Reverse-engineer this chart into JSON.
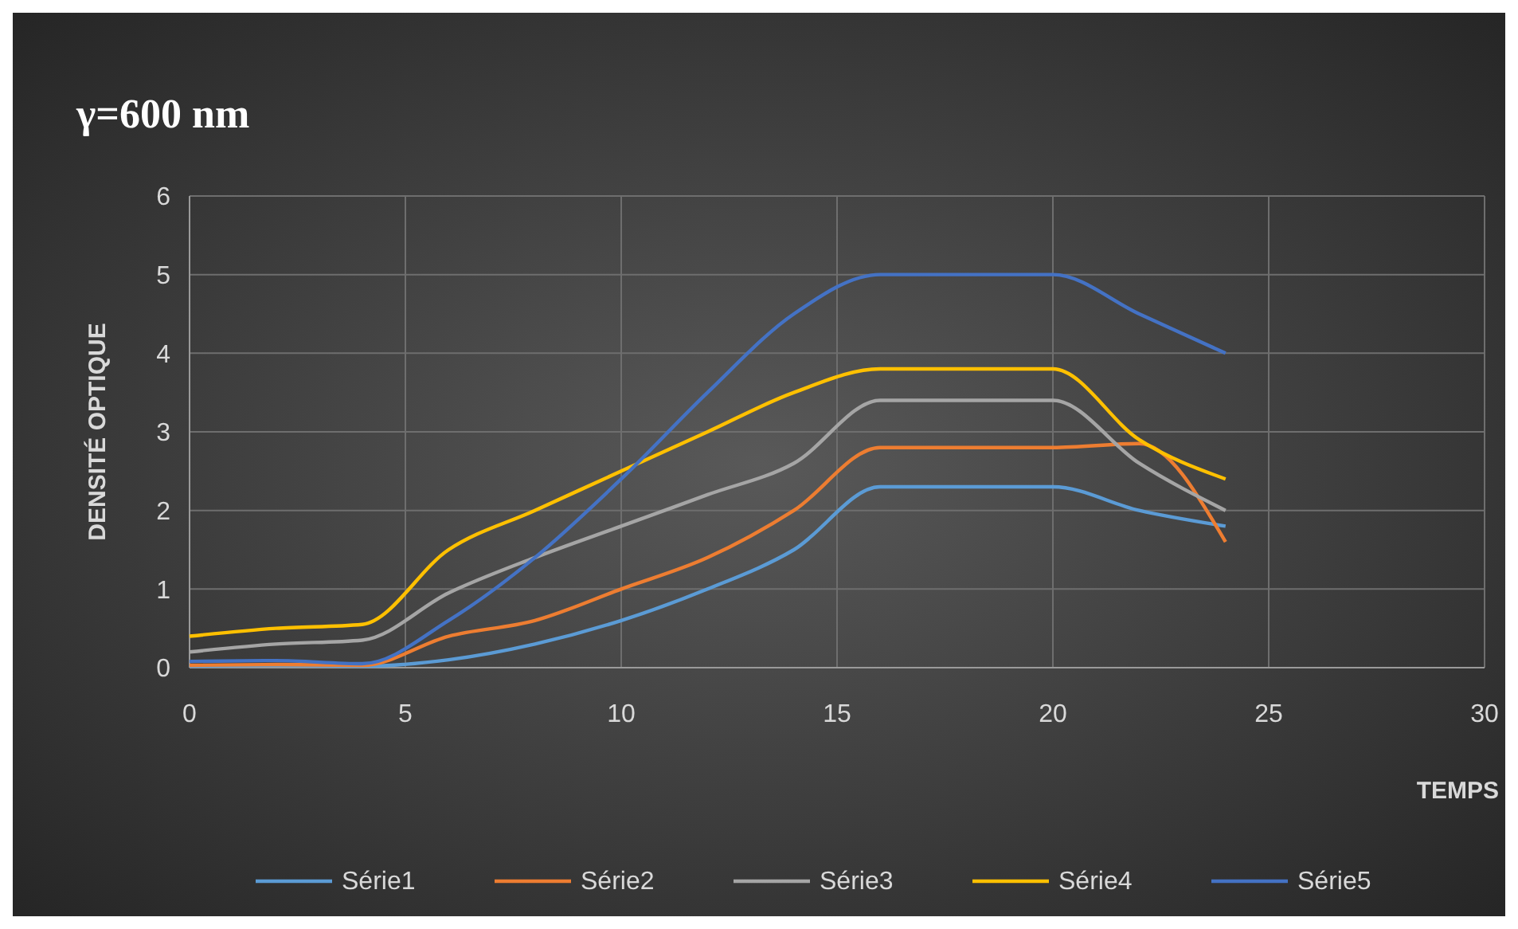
{
  "chart_data": {
    "type": "line",
    "title": "γ=600 nm",
    "xlabel": "TEMPS",
    "ylabel": "DENSITÉ OPTIQUE",
    "x": [
      0,
      2,
      4,
      6,
      8,
      10,
      12,
      14,
      16,
      18,
      20,
      22,
      24
    ],
    "series": [
      {
        "name": "Série1",
        "color": "#5b9bd5",
        "values": [
          0.02,
          0.03,
          0.02,
          0.1,
          0.3,
          0.6,
          1.0,
          1.5,
          2.3,
          2.3,
          2.3,
          2.0,
          1.8
        ]
      },
      {
        "name": "Série2",
        "color": "#ed7d31",
        "values": [
          0.03,
          0.04,
          0.03,
          0.4,
          0.6,
          1.0,
          1.4,
          2.0,
          2.8,
          2.8,
          2.8,
          2.85,
          1.6
        ]
      },
      {
        "name": "Série3",
        "color": "#a5a5a5",
        "values": [
          0.2,
          0.3,
          0.35,
          0.95,
          1.4,
          1.8,
          2.2,
          2.6,
          3.4,
          3.4,
          3.4,
          2.6,
          2.0
        ]
      },
      {
        "name": "Série4",
        "color": "#ffc000",
        "values": [
          0.4,
          0.5,
          0.55,
          1.5,
          2.0,
          2.5,
          3.0,
          3.5,
          3.8,
          3.8,
          3.8,
          2.9,
          2.4
        ]
      },
      {
        "name": "Série5",
        "color": "#4472c4",
        "values": [
          0.08,
          0.09,
          0.05,
          0.6,
          1.4,
          2.4,
          3.5,
          4.5,
          5.0,
          5.0,
          5.0,
          4.5,
          4.0
        ]
      }
    ],
    "xlim": [
      0,
      30
    ],
    "xticks": [
      0,
      5,
      10,
      15,
      20,
      25,
      30
    ],
    "ylim": [
      0,
      6
    ],
    "yticks": [
      0,
      1,
      2,
      3,
      4,
      5,
      6
    ],
    "grid": true,
    "legend": "bottom",
    "marker": "none",
    "line_style": "solid"
  }
}
